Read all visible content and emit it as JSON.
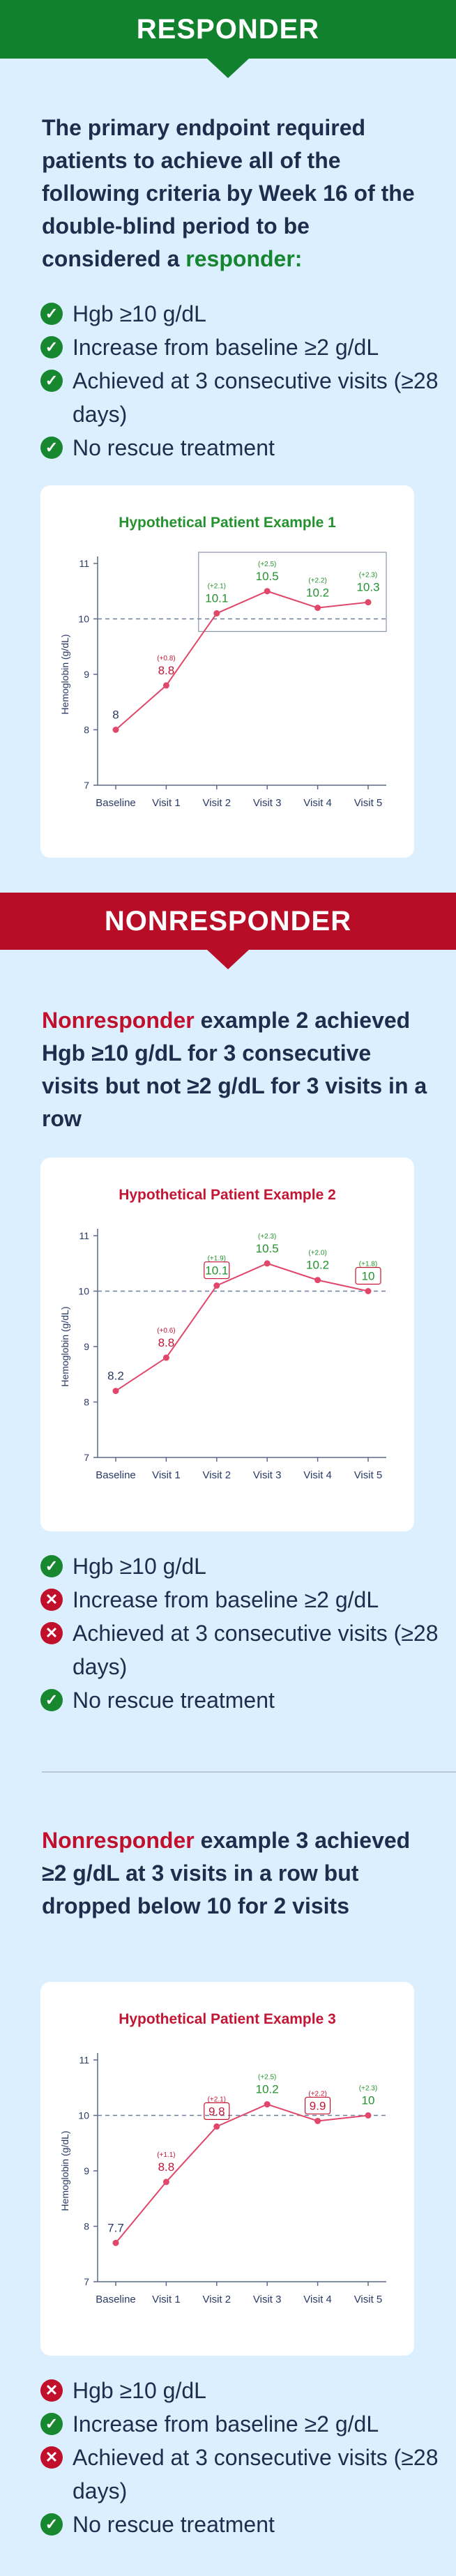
{
  "responder": {
    "banner": "RESPONDER",
    "intro": "The primary endpoint required patients to achieve all of the following criteria by Week 16 of the double-blind period to be considered a",
    "intro_highlight": "responder:",
    "criteria": [
      {
        "text": "Hgb ≥10 g/dL",
        "met": true
      },
      {
        "text": "Increase from baseline ≥2 g/dL",
        "met": true
      },
      {
        "text": "Achieved at 3 consecutive visits (≥28 days)",
        "met": true
      },
      {
        "text": "No rescue treatment",
        "met": true
      }
    ]
  },
  "nonresponder": {
    "banner": "NONRESPONDER",
    "example2": {
      "highlight": "Nonresponder",
      "text": " example 2 achieved Hgb ≥10 g/dL for 3 consecutive visits but not ≥2 g/dL for 3 visits in a row",
      "criteria": [
        {
          "text": "Hgb ≥10 g/dL",
          "met": true
        },
        {
          "text": "Increase from baseline ≥2 g/dL",
          "met": false
        },
        {
          "text": "Achieved at 3 consecutive visits (≥28 days)",
          "met": false
        },
        {
          "text": "No rescue treatment",
          "met": true
        }
      ]
    },
    "example3": {
      "highlight": "Nonresponder",
      "text": " example 3 achieved ≥2 g/dL at 3 visits in a row but dropped below 10 for 2 visits",
      "criteria": [
        {
          "text": "Hgb ≥10 g/dL",
          "met": false
        },
        {
          "text": "Increase from baseline ≥2 g/dL",
          "met": true
        },
        {
          "text": "Achieved at 3 consecutive visits (≥28 days)",
          "met": false
        },
        {
          "text": "No rescue treatment",
          "met": true
        }
      ]
    }
  },
  "colors": {
    "green": "#12812d",
    "red": "#b80d27",
    "line": "#e0476b",
    "navy": "#1f2d4d"
  },
  "chart_data": [
    {
      "type": "line",
      "title": "Hypothetical Patient Example 1",
      "title_color": "#24922f",
      "ylabel": "Hemoglobin (g/dL)",
      "categories": [
        "Baseline",
        "Visit 1",
        "Visit 2",
        "Visit 3",
        "Visit 4",
        "Visit 5"
      ],
      "values": [
        8,
        8.8,
        10.1,
        10.5,
        10.2,
        10.3
      ],
      "value_labels": [
        "8",
        "8.8",
        "10.1",
        "10.5",
        "10.2",
        "10.3"
      ],
      "changes": [
        "",
        "(+0.8)",
        "(+2.1)",
        "(+2.5)",
        "(+2.2)",
        "(+2.3)"
      ],
      "label_colors": [
        "navy",
        "red",
        "green",
        "green",
        "green",
        "green"
      ],
      "boxed": [
        false,
        false,
        false,
        false,
        false,
        false
      ],
      "highlight_span": [
        2,
        5
      ],
      "yticks": [
        "7",
        "8",
        "9",
        "10",
        "11"
      ],
      "ylim": [
        7,
        11
      ],
      "threshold": 10,
      "legend": "none"
    },
    {
      "type": "line",
      "title": "Hypothetical Patient Example 2",
      "title_color": "#c21634",
      "ylabel": "Hemoglobin (g/dL)",
      "categories": [
        "Baseline",
        "Visit 1",
        "Visit 2",
        "Visit 3",
        "Visit 4",
        "Visit 5"
      ],
      "values": [
        8.2,
        8.8,
        10.1,
        10.5,
        10.2,
        10
      ],
      "value_labels": [
        "8.2",
        "8.8",
        "10.1",
        "10.5",
        "10.2",
        "10"
      ],
      "changes": [
        "",
        "(+0.6)",
        "(+1.9)",
        "(+2.3)",
        "(+2.0)",
        "(+1.8)"
      ],
      "label_colors": [
        "navy",
        "red",
        "green",
        "green",
        "green",
        "green"
      ],
      "boxed": [
        false,
        false,
        true,
        false,
        false,
        true
      ],
      "highlight_span": null,
      "yticks": [
        "7",
        "8",
        "9",
        "10",
        "11"
      ],
      "ylim": [
        7,
        11
      ],
      "threshold": 10,
      "legend": "none"
    },
    {
      "type": "line",
      "title": "Hypothetical Patient Example 3",
      "title_color": "#c21634",
      "ylabel": "Hemoglobin (g/dL)",
      "categories": [
        "Baseline",
        "Visit 1",
        "Visit 2",
        "Visit 3",
        "Visit 4",
        "Visit 5"
      ],
      "values": [
        7.7,
        8.8,
        9.8,
        10.2,
        9.9,
        10
      ],
      "value_labels": [
        "7.7",
        "8.8",
        "9.8",
        "10.2",
        "9.9",
        "10"
      ],
      "changes": [
        "",
        "(+1.1)",
        "(+2.1)",
        "(+2.5)",
        "(+2.2)",
        "(+2.3)"
      ],
      "label_colors": [
        "navy",
        "red",
        "red",
        "green",
        "red",
        "green"
      ],
      "boxed": [
        false,
        false,
        true,
        false,
        true,
        false
      ],
      "highlight_span": null,
      "yticks": [
        "7",
        "8",
        "9",
        "10",
        "11"
      ],
      "ylim": [
        7,
        11
      ],
      "threshold": 10,
      "legend": "none"
    }
  ]
}
